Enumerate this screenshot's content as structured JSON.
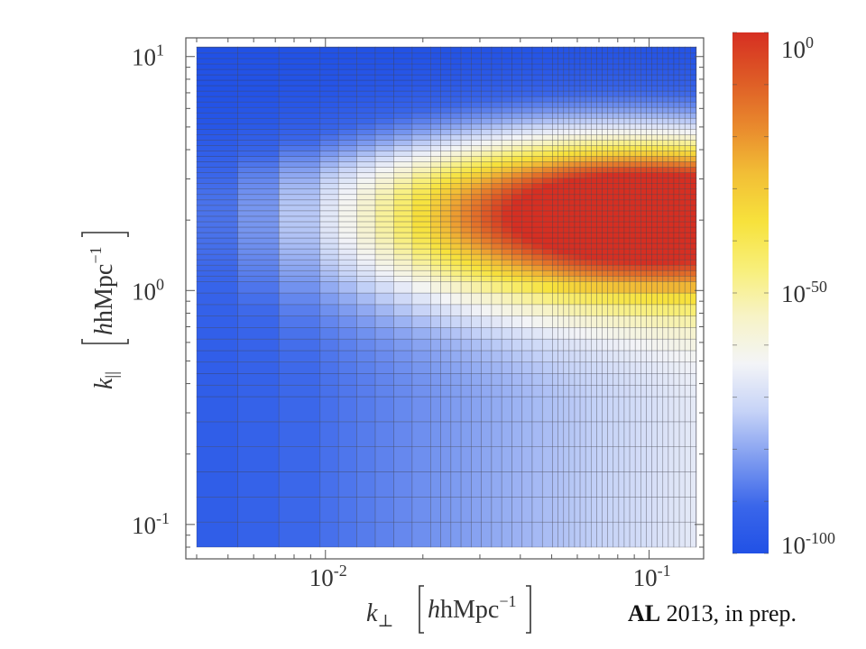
{
  "chart_data": {
    "type": "heatmap",
    "title": "",
    "x_axis": {
      "scale": "log",
      "range": [
        0.004,
        0.14
      ],
      "ticks": [
        {
          "value": 0.01,
          "base": "10",
          "exp": "-2"
        },
        {
          "value": 0.1,
          "base": "10",
          "exp": "-1"
        }
      ],
      "label_symbol": "k",
      "label_subscript": "⊥",
      "label_unit": "hMpc",
      "label_unit_exp": "−1"
    },
    "y_axis": {
      "scale": "log",
      "range": [
        0.08,
        11
      ],
      "ticks": [
        {
          "value": 0.1,
          "base": "10",
          "exp": "-1"
        },
        {
          "value": 1,
          "base": "10",
          "exp": "0"
        },
        {
          "value": 10,
          "base": "10",
          "exp": "1"
        }
      ],
      "label_symbol": "k",
      "label_subscript": "||",
      "label_unit": "hMpc",
      "label_unit_exp": "−1"
    },
    "colorbar": {
      "scale": "log",
      "range": [
        1e-100,
        1
      ],
      "ticks": [
        {
          "value": 1,
          "base": "10",
          "exp": "0"
        },
        {
          "value": 1e-50,
          "base": "10",
          "exp": "-50"
        },
        {
          "value": 1e-100,
          "base": "10",
          "exp": "-100"
        }
      ],
      "colormap": [
        "#2151e6",
        "#3a66ea",
        "#7f9cf0",
        "#c6d3f7",
        "#f3f4f7",
        "#f7f3c6",
        "#f8ef7a",
        "#f7e23c",
        "#f2bf36",
        "#e98a2d",
        "#de5b26",
        "#d62f22"
      ],
      "peak": {
        "k_perp": 0.085,
        "k_par": 2.1,
        "value": 1
      }
    },
    "grid": false
  },
  "credit": {
    "bold": "AL",
    "rest": " 2013, in prep."
  }
}
